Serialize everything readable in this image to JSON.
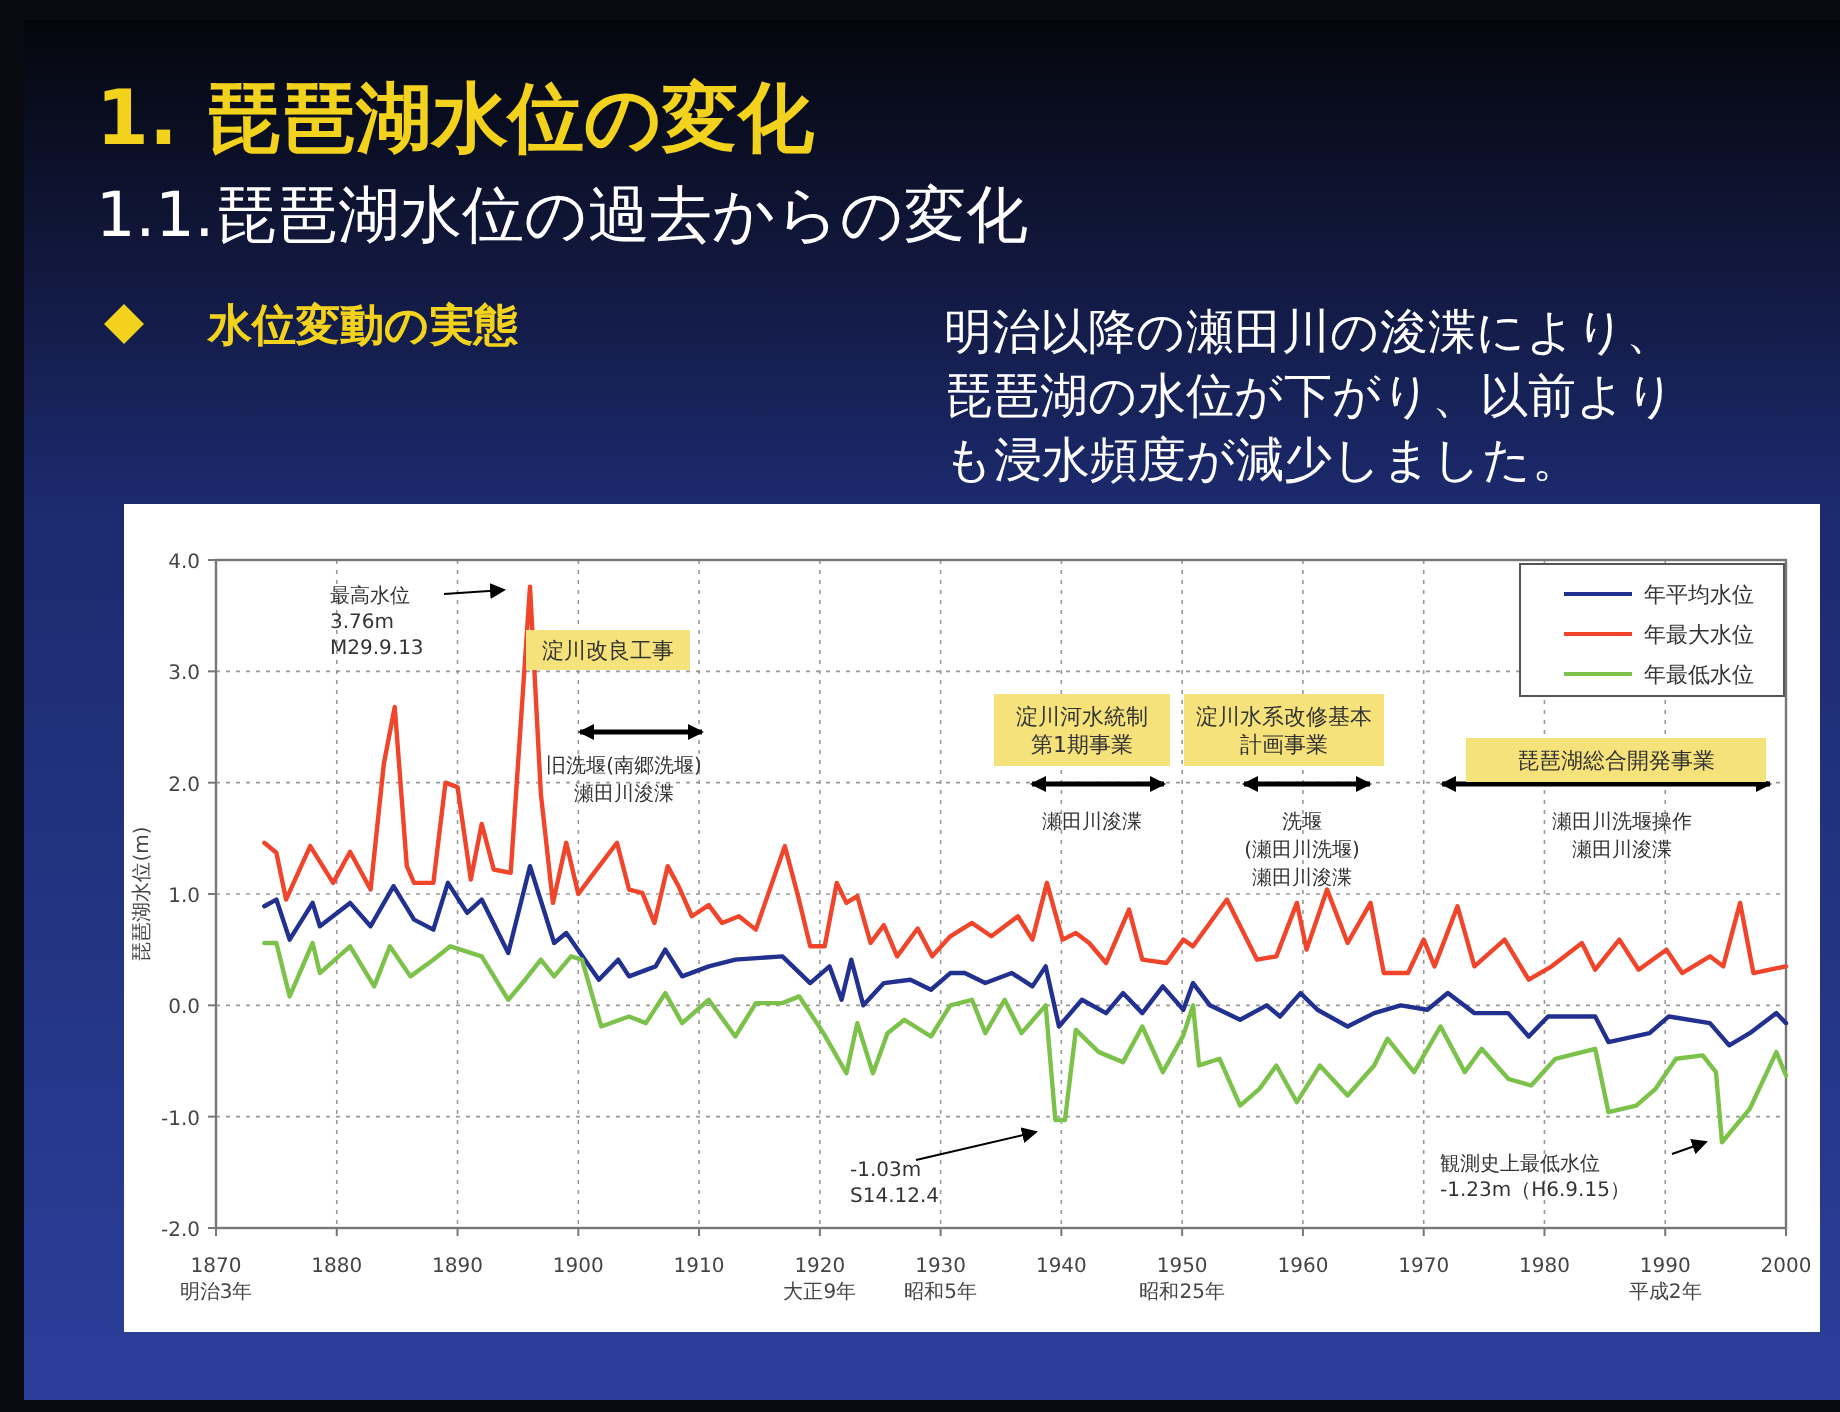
{
  "chart_data": {
    "type": "line",
    "title": "1. 琵琶湖水位の変化",
    "subtitle": "1.1.琵琶湖水位の過去からの変化",
    "ylabel": "琵琶湖水位(m)",
    "xlim": [
      1870,
      2000
    ],
    "xticks": [
      {
        "value": 1870,
        "label": "1870\n明治3年"
      },
      1880,
      1890,
      1900,
      1910,
      {
        "value": 1920,
        "label": "1920\n大正9年"
      },
      {
        "value": 1930,
        "label": "1930\n昭和5年"
      },
      1940,
      {
        "value": 1950,
        "label": "1950\n昭和25年"
      },
      1960,
      1970,
      1980,
      {
        "value": 1990,
        "label": "1990\n平成2年"
      },
      2000
    ],
    "ylim": [
      -2,
      4
    ],
    "yticks": [
      {
        "value": -2,
        "label": "-2.0"
      },
      {
        "value": -1,
        "label": "-1.0"
      },
      {
        "value": 0,
        "label": "0.0"
      },
      {
        "value": 1,
        "label": "1.0"
      },
      {
        "value": 2,
        "label": "2.0"
      },
      {
        "value": 3,
        "label": "3.0"
      },
      {
        "value": 4,
        "label": "4.0"
      }
    ],
    "grid": true,
    "legend": "top right",
    "series": [
      {
        "name": "年平均水位",
        "color": "#22318f",
        "x": [
          1874,
          1875,
          1876.1,
          1878,
          1878.6,
          1881.1,
          1882.8,
          1884.7,
          1886.4,
          1888,
          1889.2,
          1890.8,
          1892,
          1894.2,
          1896,
          1898,
          1899,
          1901.7,
          1903.3,
          1904.2,
          1906.4,
          1907.2,
          1908.6,
          1910.8,
          1913,
          1916.9,
          1919.2,
          1920.8,
          1921.8,
          1922.6,
          1923.6,
          1925.3,
          1927.5,
          1929.2,
          1930.8,
          1932,
          1933.7,
          1935.9,
          1937.6,
          1938.7,
          1939.8,
          1941.7,
          1943.7,
          1945.1,
          1946.7,
          1948.4,
          1950.1,
          1950.9,
          1952.3,
          1954.8,
          1957,
          1958.1,
          1959.8,
          1961.2,
          1963.7,
          1965.9,
          1968.1,
          1970.3,
          1972,
          1974.2,
          1977,
          1978.7,
          1980.3,
          1984.2,
          1985.3,
          1988.7,
          1990.3,
          1993.7,
          1995.3,
          1997,
          1999.2,
          2000
        ],
        "values": [
          0.89,
          0.95,
          0.59,
          0.92,
          0.71,
          0.92,
          0.71,
          1.07,
          0.77,
          0.68,
          1.1,
          0.83,
          0.95,
          0.47,
          1.25,
          0.56,
          0.65,
          0.23,
          0.41,
          0.26,
          0.35,
          0.5,
          0.26,
          0.35,
          0.41,
          0.44,
          0.2,
          0.35,
          0.05,
          0.41,
          0.0,
          0.2,
          0.23,
          0.14,
          0.29,
          0.29,
          0.2,
          0.29,
          0.17,
          0.35,
          -0.19,
          0.05,
          -0.07,
          0.11,
          -0.07,
          0.17,
          -0.04,
          0.2,
          0.0,
          -0.13,
          0.0,
          -0.1,
          0.11,
          -0.04,
          -0.19,
          -0.07,
          0.0,
          -0.04,
          0.11,
          -0.07,
          -0.07,
          -0.28,
          -0.1,
          -0.1,
          -0.33,
          -0.25,
          -0.1,
          -0.16,
          -0.36,
          -0.25,
          -0.07,
          -0.16
        ]
      },
      {
        "name": "年最大水位",
        "color": "#f0452b",
        "x": [
          1874,
          1875,
          1875.8,
          1877.8,
          1879.7,
          1881.1,
          1882.8,
          1883.9,
          1884.8,
          1885.8,
          1886.4,
          1888,
          1889,
          1890,
          1891.1,
          1892,
          1893,
          1894.4,
          1896,
          1896.9,
          1897.9,
          1899,
          1900,
          1901.1,
          1903.2,
          1904.2,
          1905.3,
          1906.3,
          1907.4,
          1908.3,
          1909.4,
          1910.8,
          1911.9,
          1913.3,
          1914.7,
          1917.1,
          1918.2,
          1919.2,
          1920.4,
          1921.4,
          1922.2,
          1923.1,
          1924.2,
          1925.3,
          1926.4,
          1928.1,
          1929.3,
          1930.8,
          1932.6,
          1934.2,
          1936.4,
          1937.6,
          1938.8,
          1940.1,
          1941.2,
          1942.3,
          1943.7,
          1945.6,
          1946.7,
          1948.7,
          1950.1,
          1950.9,
          1953.7,
          1956.2,
          1957.8,
          1959.5,
          1960.3,
          1962,
          1963.7,
          1965.6,
          1966.7,
          1968.7,
          1970,
          1970.9,
          1972.8,
          1974.2,
          1976.7,
          1978.7,
          1980.6,
          1983.1,
          1984.2,
          1986.2,
          1987.8,
          1990.1,
          1991.4,
          1993.7,
          1994.8,
          1996.2,
          1997.3,
          2000
        ],
        "values": [
          1.46,
          1.37,
          0.95,
          1.43,
          1.1,
          1.38,
          1.04,
          2.17,
          2.68,
          1.25,
          1.1,
          1.1,
          2.0,
          1.96,
          1.13,
          1.63,
          1.22,
          1.19,
          3.76,
          1.9,
          0.92,
          1.46,
          1.0,
          1.16,
          1.46,
          1.04,
          1.01,
          0.74,
          1.25,
          1.07,
          0.8,
          0.9,
          0.74,
          0.8,
          0.68,
          1.43,
          0.98,
          0.53,
          0.53,
          1.1,
          0.92,
          0.98,
          0.56,
          0.72,
          0.44,
          0.69,
          0.44,
          0.62,
          0.74,
          0.62,
          0.8,
          0.59,
          1.1,
          0.59,
          0.65,
          0.56,
          0.38,
          0.86,
          0.41,
          0.38,
          0.59,
          0.53,
          0.95,
          0.41,
          0.44,
          0.92,
          0.5,
          1.04,
          0.56,
          0.92,
          0.29,
          0.29,
          0.59,
          0.35,
          0.89,
          0.35,
          0.59,
          0.23,
          0.35,
          0.56,
          0.32,
          0.59,
          0.32,
          0.5,
          0.29,
          0.44,
          0.35,
          0.92,
          0.29,
          0.35
        ]
      },
      {
        "name": "年最低水位",
        "color": "#7cc24a",
        "x": [
          1874,
          1875,
          1876.1,
          1878,
          1878.6,
          1881.1,
          1883.1,
          1884.4,
          1886.1,
          1888,
          1889.4,
          1892,
          1894.2,
          1895.6,
          1896.9,
          1898,
          1899.4,
          1900.3,
          1901.9,
          1904.2,
          1905.6,
          1907.2,
          1908.6,
          1910.8,
          1913,
          1914.7,
          1916.9,
          1918.3,
          1920.3,
          1922.2,
          1923.1,
          1924.4,
          1925.6,
          1927,
          1929.2,
          1930.8,
          1932.6,
          1933.7,
          1935.3,
          1936.7,
          1938.7,
          1939.5,
          1940.3,
          1941.2,
          1943.1,
          1945.1,
          1946.7,
          1948.4,
          1950.1,
          1950.9,
          1951.4,
          1953.1,
          1954.8,
          1956.4,
          1957.8,
          1959.5,
          1961.4,
          1963.7,
          1965.9,
          1967,
          1969.2,
          1971.4,
          1973.4,
          1974.8,
          1977,
          1978.9,
          1980.9,
          1984.2,
          1985.3,
          1987.6,
          1989.2,
          1990.9,
          1993.1,
          1994.2,
          1994.7,
          1997,
          1999.2,
          2000
        ],
        "values": [
          0.56,
          0.56,
          0.08,
          0.56,
          0.29,
          0.53,
          0.17,
          0.53,
          0.26,
          0.41,
          0.53,
          0.44,
          0.05,
          0.23,
          0.41,
          0.26,
          0.44,
          0.41,
          -0.19,
          -0.1,
          -0.16,
          0.11,
          -0.16,
          0.05,
          -0.28,
          0.02,
          0.02,
          0.08,
          -0.25,
          -0.61,
          -0.16,
          -0.61,
          -0.25,
          -0.13,
          -0.28,
          0.0,
          0.05,
          -0.25,
          0.05,
          -0.25,
          0.0,
          -1.03,
          -1.03,
          -0.22,
          -0.42,
          -0.51,
          -0.19,
          -0.6,
          -0.27,
          0.0,
          -0.54,
          -0.48,
          -0.9,
          -0.75,
          -0.54,
          -0.87,
          -0.54,
          -0.81,
          -0.54,
          -0.3,
          -0.6,
          -0.19,
          -0.6,
          -0.39,
          -0.66,
          -0.72,
          -0.48,
          -0.39,
          -0.96,
          -0.9,
          -0.75,
          -0.48,
          -0.45,
          -0.6,
          -1.23,
          -0.93,
          -0.42,
          -0.63
        ]
      }
    ],
    "annotations": [
      "水位変動の実態",
      "明治以降の瀬田川の浚渫により、琵琶湖の水位が下がり、以前よりも浸水頻度が減少しました。",
      "最高水位",
      "3.76m",
      "M29.9.13",
      "-1.03m",
      "S14.12.4",
      "観測史上最低水位",
      "-1.23m（H6.9.15）",
      "淀川改良工事",
      "旧洗堰(南郷洗堰)",
      "瀬田川浚渫",
      "淀川河水統制第1期事業",
      "瀬田川浚渫",
      "淀川水系改修基本計画事業",
      "洗堰",
      "(瀬田川洗堰)",
      "瀬田川浚渫",
      "琵琶湖総合開発事業",
      "瀬田川洗堰操作",
      "瀬田川浚渫"
    ]
  }
}
